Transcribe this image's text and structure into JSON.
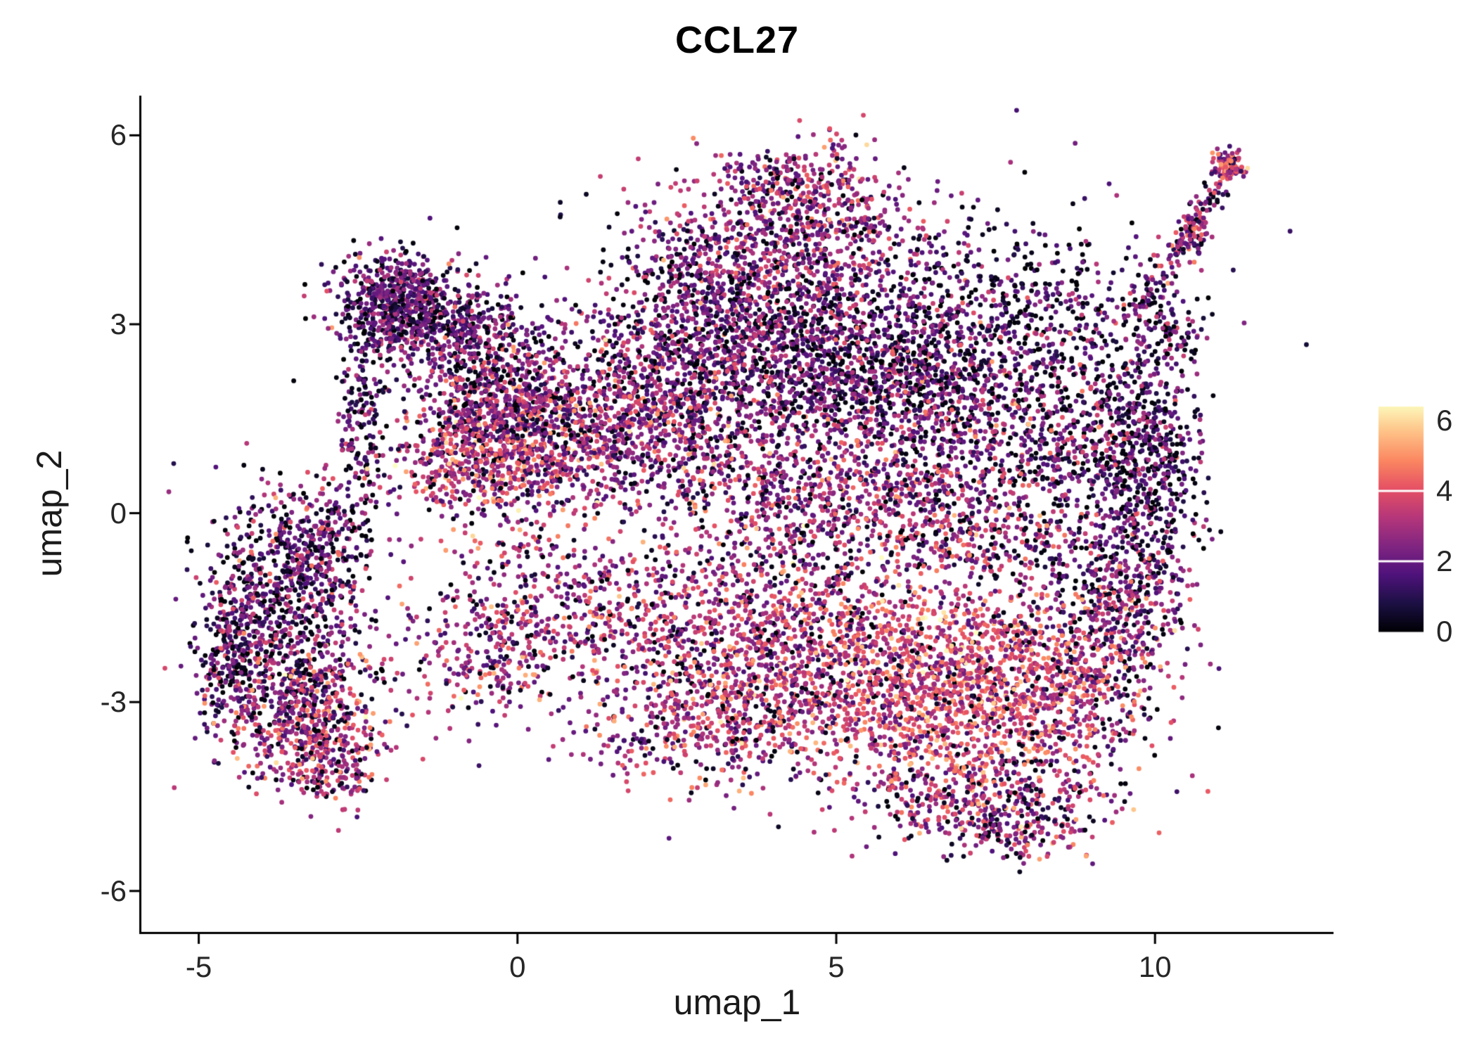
{
  "chart_data": {
    "type": "scatter",
    "title": "CCL27",
    "xlabel": "umap_1",
    "ylabel": "umap_2",
    "x_range": [
      -5.9,
      12.8
    ],
    "y_range": [
      -6.65,
      6.63
    ],
    "x_ticks": [
      {
        "value": -5,
        "label": "-5"
      },
      {
        "value": 0,
        "label": "0"
      },
      {
        "value": 5,
        "label": "5"
      },
      {
        "value": 10,
        "label": "10"
      }
    ],
    "y_ticks": [
      {
        "value": 6,
        "label": "6"
      },
      {
        "value": 3,
        "label": "3"
      },
      {
        "value": 0,
        "label": "0"
      },
      {
        "value": -3,
        "label": "-3"
      },
      {
        "value": -6,
        "label": "-6"
      }
    ],
    "grid": false,
    "background": "#ffffff",
    "axis_color": "#000000",
    "text_color": "#1a1a1a",
    "legend": {
      "position": "right",
      "orientation": "vertical",
      "vmin": 0,
      "vmax": 6.4,
      "labels": [
        {
          "value": 6,
          "label": "6"
        },
        {
          "value": 4,
          "label": "4"
        },
        {
          "value": 2,
          "label": "2"
        },
        {
          "value": 0,
          "label": "0"
        }
      ],
      "tick_values": [
        4,
        2
      ],
      "tick_color": "#ffffff"
    },
    "colormap": {
      "name": "magma",
      "value_max": 6.5,
      "stops": [
        [
          0.0,
          "#000004"
        ],
        [
          0.125,
          "#1c1044"
        ],
        [
          0.25,
          "#4f127b"
        ],
        [
          0.375,
          "#812581"
        ],
        [
          0.5,
          "#b5367a"
        ],
        [
          0.625,
          "#e55064"
        ],
        [
          0.75,
          "#fb8761"
        ],
        [
          0.875,
          "#fec287"
        ],
        [
          1.0,
          "#fcfdbf"
        ]
      ]
    },
    "points": {
      "radius": 3.4,
      "seed": 1337,
      "cluster_format": [
        "center_x",
        "center_y",
        "sigma_x",
        "sigma_y",
        "count",
        "expr_mean",
        "expr_sd",
        "zero_fraction"
      ],
      "clusters": [
        [
          -3.7,
          -1.6,
          0.65,
          0.9,
          700,
          2.0,
          1.2,
          0.2
        ],
        [
          -3.3,
          -3.2,
          0.55,
          0.55,
          450,
          3.0,
          1.2,
          0.12
        ],
        [
          -4.4,
          -2.3,
          0.3,
          0.7,
          250,
          2.2,
          1.2,
          0.18
        ],
        [
          -3.2,
          -0.5,
          0.5,
          0.5,
          280,
          2.3,
          1.2,
          0.15
        ],
        [
          -2.9,
          -4.0,
          0.35,
          0.35,
          160,
          3.2,
          1.1,
          0.1
        ],
        [
          -2.45,
          1.5,
          0.18,
          0.9,
          170,
          1.8,
          1.0,
          0.2
        ],
        [
          -1.9,
          3.4,
          0.45,
          0.35,
          520,
          1.9,
          1.0,
          0.15
        ],
        [
          -1.55,
          2.9,
          0.5,
          0.3,
          200,
          2.0,
          1.0,
          0.15
        ],
        [
          -0.6,
          2.9,
          0.5,
          0.4,
          260,
          2.1,
          1.1,
          0.15
        ],
        [
          -0.4,
          1.0,
          0.75,
          0.6,
          850,
          3.1,
          1.2,
          0.1
        ],
        [
          -0.2,
          2.0,
          0.7,
          0.45,
          350,
          2.4,
          1.1,
          0.15
        ],
        [
          1.6,
          1.3,
          1.0,
          0.6,
          700,
          2.8,
          1.2,
          0.12
        ],
        [
          2.4,
          2.5,
          0.9,
          0.6,
          450,
          2.3,
          1.1,
          0.18
        ],
        [
          4.6,
          2.4,
          1.2,
          0.7,
          1200,
          1.9,
          1.1,
          0.22
        ],
        [
          6.6,
          2.2,
          0.9,
          0.7,
          500,
          2.0,
          1.1,
          0.22
        ],
        [
          4.3,
          4.3,
          1.1,
          0.65,
          750,
          2.6,
          1.2,
          0.12
        ],
        [
          4.4,
          5.2,
          0.6,
          0.3,
          200,
          2.8,
          1.2,
          0.1
        ],
        [
          3.0,
          3.7,
          0.7,
          0.5,
          300,
          2.3,
          1.1,
          0.15
        ],
        [
          7.8,
          3.4,
          1.0,
          0.7,
          350,
          1.6,
          1.1,
          0.3
        ],
        [
          8.6,
          1.6,
          0.8,
          0.8,
          400,
          2.0,
          1.1,
          0.25
        ],
        [
          9.8,
          0.8,
          0.45,
          1.1,
          600,
          1.7,
          1.1,
          0.28
        ],
        [
          9.6,
          -1.3,
          0.5,
          0.8,
          350,
          2.3,
          1.2,
          0.18
        ],
        [
          6.3,
          0.3,
          1.1,
          0.8,
          650,
          2.7,
          1.2,
          0.12
        ],
        [
          4.0,
          0.3,
          0.9,
          0.7,
          450,
          2.7,
          1.2,
          0.12
        ],
        [
          6.8,
          -2.8,
          1.1,
          0.8,
          1200,
          3.8,
          1.1,
          0.07
        ],
        [
          4.8,
          -2.2,
          0.9,
          0.8,
          650,
          3.2,
          1.2,
          0.1
        ],
        [
          8.7,
          -2.6,
          0.7,
          0.8,
          450,
          3.0,
          1.2,
          0.12
        ],
        [
          7.2,
          -4.5,
          1.1,
          0.45,
          450,
          2.9,
          1.2,
          0.15
        ],
        [
          7.8,
          -5.0,
          0.5,
          0.25,
          120,
          2.7,
          1.2,
          0.15
        ],
        [
          2.8,
          -2.2,
          1.0,
          0.8,
          600,
          3.0,
          1.2,
          0.12
        ],
        [
          3.3,
          -3.4,
          0.8,
          0.5,
          300,
          3.2,
          1.2,
          0.1
        ],
        [
          0.6,
          -1.5,
          0.9,
          0.7,
          350,
          2.9,
          1.2,
          0.12
        ],
        [
          -0.6,
          -2.3,
          0.7,
          0.6,
          220,
          3.0,
          1.2,
          0.12
        ],
        [
          3.8,
          0.8,
          2.8,
          1.8,
          700,
          2.5,
          1.3,
          0.18
        ],
        [
          8.2,
          -0.3,
          1.0,
          1.2,
          400,
          2.4,
          1.2,
          0.18
        ],
        [
          11.15,
          5.5,
          0.12,
          0.12,
          90,
          3.6,
          1.2,
          0.05
        ],
        [
          10.6,
          4.4,
          0.12,
          0.2,
          60,
          2.5,
          1.0,
          0.15
        ],
        [
          10.3,
          2.9,
          0.25,
          0.35,
          80,
          1.8,
          1.0,
          0.3
        ],
        [
          1.5,
          -3.6,
          0.4,
          0.3,
          40,
          2.5,
          1.2,
          0.2
        ]
      ],
      "streak_format": [
        "x1",
        "y1",
        "x2",
        "y2",
        "count",
        "jitter",
        "expr_mean",
        "expr_sd",
        "zero_fraction"
      ],
      "streaks": [
        [
          9.6,
          3.0,
          11.1,
          5.4,
          150,
          0.13,
          2.2,
          1.2,
          0.2
        ]
      ]
    }
  }
}
